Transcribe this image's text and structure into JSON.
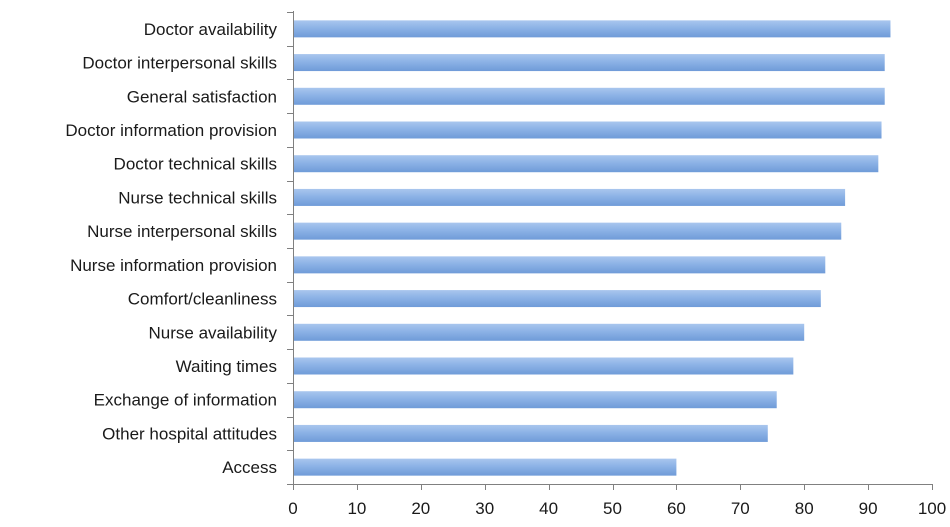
{
  "chart_data": {
    "type": "bar",
    "orientation": "horizontal",
    "title": "",
    "xlabel": "",
    "ylabel": "",
    "categories": [
      "Doctor availability",
      "Doctor interpersonal skills",
      "General satisfaction",
      "Doctor information provision",
      "Doctor technical skills",
      "Nurse technical skills",
      "Nurse interpersonal skills",
      "Nurse information provision",
      "Comfort/cleanliness",
      "Nurse availability",
      "Waiting times",
      "Exchange of information",
      "Other hospital attitudes",
      "Access"
    ],
    "values": [
      93.5,
      92.6,
      92.6,
      92.1,
      91.6,
      86.4,
      85.8,
      83.3,
      82.6,
      80.0,
      78.3,
      75.7,
      74.3,
      60.0
    ],
    "xlim": [
      0,
      100
    ],
    "x_ticks": [
      "0",
      "10",
      "20",
      "30",
      "40",
      "50",
      "60",
      "70",
      "80",
      "90",
      "100"
    ],
    "grid": false,
    "legend": "none",
    "bar_color": "#6f9bd8",
    "bar_color_light": "#a9c6ee"
  }
}
